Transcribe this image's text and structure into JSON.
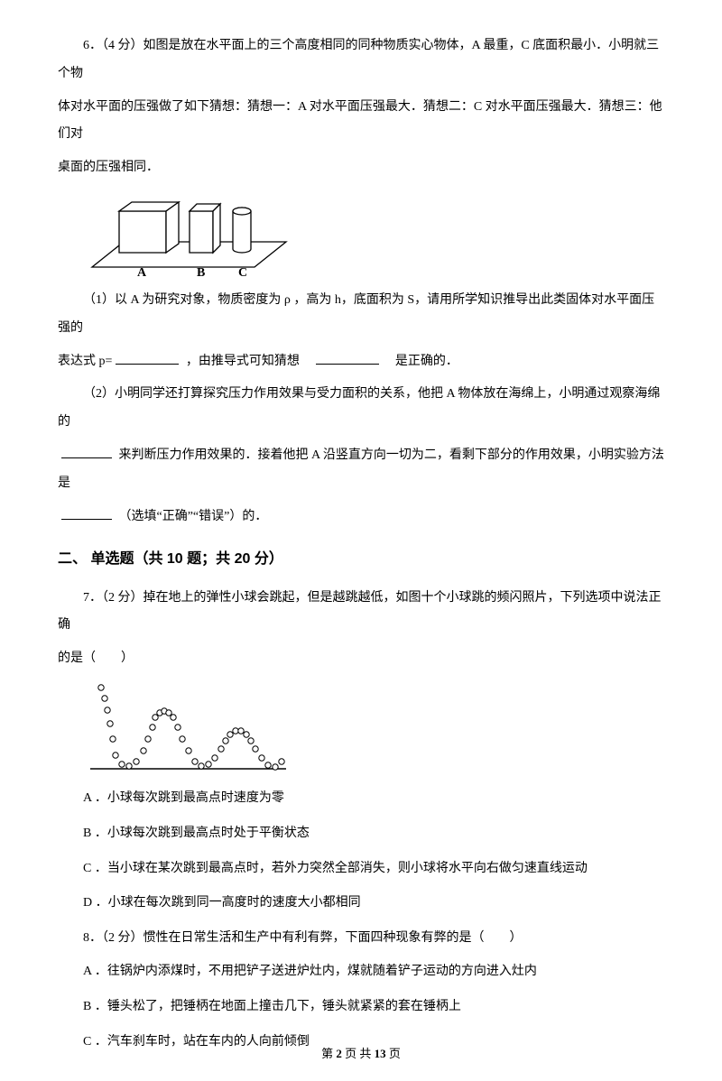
{
  "q6": {
    "number": "6．（4 分）",
    "stem_line1": "如图是放在水平面上的三个高度相同的同种物质实心物体，A 最重，C 底面积最小．小明就三个物",
    "stem_line2": "体对水平面的压强做了如下猜想：猜想一：A 对水平面压强最大．猜想二：C 对水平面压强最大．猜想三：他们对",
    "stem_line3": "桌面的压强相同．",
    "figure": {
      "label_a": "A",
      "label_b": "B",
      "label_c": "C",
      "stroke": "#000000",
      "fill": "#ffffff"
    },
    "sub1_prefix": "（1）以 A 为研究对象，物质密度为 ρ ，高为 h，底面积为 S，请用所学知识推导出此类固体对水平面压强的",
    "sub1_line2_a": "表达式 p=",
    "sub1_line2_b": "，由推导式可知猜想",
    "sub1_line2_c": "是正确的．",
    "sub2_line1": "（2）小明同学还打算探究压力作用效果与受力面积的关系，他把 A 物体放在海绵上，小明通过观察海绵的",
    "sub2_line2_a": "来判断压力作用效果的．接着他把 A 沿竖直方向一切为二，看剩下部分的作用效果，小明实验方法是",
    "sub2_line3": "（选填“正确”“错误”）的．"
  },
  "section2": "二、 单选题（共 10 题；共 20 分）",
  "q7": {
    "number": "7．（2 分）",
    "stem_line1": "掉在地上的弹性小球会跳起，但是越跳越低，如图十个小球跳的频闪照片，下列选项中说法正确",
    "stem_line2": "的是（　　）",
    "figure": {
      "stroke": "#000000",
      "fill": "#ffffff",
      "points": [
        [
          20,
          10
        ],
        [
          24,
          22
        ],
        [
          27,
          35
        ],
        [
          30,
          50
        ],
        [
          33,
          67
        ],
        [
          36,
          85
        ],
        [
          43,
          95
        ],
        [
          51,
          97
        ],
        [
          59,
          92
        ],
        [
          67,
          80
        ],
        [
          72,
          67
        ],
        [
          77,
          54
        ],
        [
          80,
          43
        ],
        [
          85,
          38
        ],
        [
          90,
          36
        ],
        [
          95,
          38
        ],
        [
          100,
          43
        ],
        [
          105,
          54
        ],
        [
          110,
          67
        ],
        [
          117,
          80
        ],
        [
          124,
          92
        ],
        [
          131,
          97
        ],
        [
          139,
          95
        ],
        [
          146,
          88
        ],
        [
          153,
          78
        ],
        [
          158,
          69
        ],
        [
          163,
          62
        ],
        [
          169,
          58
        ],
        [
          175,
          58
        ],
        [
          181,
          62
        ],
        [
          186,
          69
        ],
        [
          191,
          78
        ],
        [
          198,
          88
        ],
        [
          205,
          96
        ],
        [
          213,
          98
        ],
        [
          220,
          92
        ]
      ]
    },
    "opt_a": "A ．小球每次跳到最高点时速度为零",
    "opt_b": "B ．小球每次跳到最高点时处于平衡状态",
    "opt_c": "C ．当小球在某次跳到最高点时，若外力突然全部消失，则小球将水平向右做匀速直线运动",
    "opt_d": "D ．小球在每次跳到同一高度时的速度大小都相同"
  },
  "q8": {
    "number": "8．（2 分）",
    "stem": "惯性在日常生活和生产中有利有弊，下面四种现象有弊的是（　　）",
    "opt_a": "A ．往锅炉内添煤时，不用把铲子送进炉灶内，煤就随着铲子运动的方向进入灶内",
    "opt_b": "B ．锤头松了，把锤柄在地面上撞击几下，锤头就紧紧的套在锤柄上",
    "opt_c": "C ．汽车刹车时，站在车内的人向前倾倒"
  },
  "footer": {
    "prefix": "第 ",
    "current": "2",
    "mid": " 页 共 ",
    "total": "13",
    "suffix": " 页"
  }
}
